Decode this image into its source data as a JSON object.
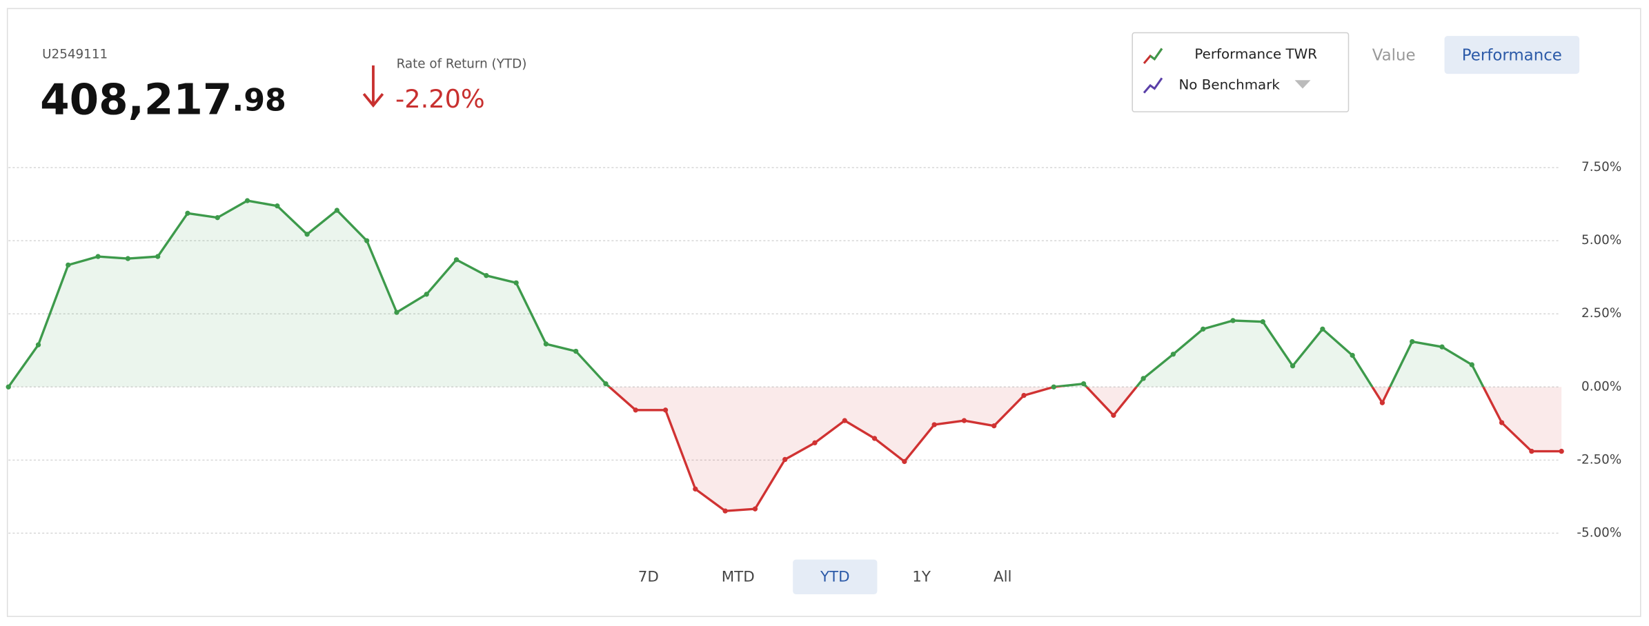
{
  "account": {
    "id": "U2549111",
    "value_main": "408,217",
    "value_cents": ".98"
  },
  "return": {
    "label": "Rate of Return (YTD)",
    "value": "-2.20%"
  },
  "legend": {
    "benchmark": "No Benchmark"
  },
  "view_buttons": [
    "Value",
    "Performance"
  ],
  "active_view_index": 1,
  "range_buttons": [
    "7D",
    "MTD",
    "YTD",
    "1Y",
    "All"
  ],
  "active_range_index": 2,
  "chart_data": {
    "type": "line",
    "categories": [
      null,
      null,
      null,
      null,
      null,
      null,
      null,
      null,
      null,
      null,
      null,
      null,
      null,
      null,
      null,
      null,
      null,
      null,
      null,
      null,
      null,
      null,
      null,
      null,
      null,
      null,
      null,
      null,
      null,
      null,
      null,
      null,
      null,
      null,
      null,
      null,
      null,
      null,
      null,
      null,
      null,
      null,
      null,
      null,
      null,
      null,
      null,
      null,
      null,
      null,
      null,
      null,
      null
    ],
    "series": [
      {
        "name": "Performance TWR",
        "color": "#3d9a4b",
        "negative_color": "#d03232",
        "values": [
          0,
          1.44,
          4.17,
          4.46,
          4.39,
          4.46,
          5.94,
          5.79,
          6.37,
          6.19,
          5.22,
          6.04,
          5.0,
          2.55,
          3.17,
          4.35,
          3.81,
          3.56,
          1.47,
          1.22,
          0.11,
          -0.79,
          -0.79,
          -3.49,
          -4.24,
          -4.17,
          -2.48,
          -1.91,
          -1.15,
          -1.76,
          -2.55,
          -1.29,
          -1.15,
          -1.33,
          -0.29,
          0,
          0.11,
          -0.97,
          0.29,
          1.12,
          1.98,
          2.27,
          2.23,
          0.72,
          1.98,
          1.08,
          -0.54,
          1.55,
          1.37,
          0.76,
          -1.22,
          -2.2,
          -2.2
        ]
      }
    ],
    "ylim": [
      -5,
      7.5
    ],
    "yticks": [
      {
        "value": -5,
        "label": "-5.00%"
      },
      {
        "value": -2.5,
        "label": "-2.50%"
      },
      {
        "value": 0,
        "label": "0.00%"
      },
      {
        "value": 2.5,
        "label": "2.50%"
      },
      {
        "value": 5,
        "label": "5.00%"
      },
      {
        "value": 7.5,
        "label": "7.50%"
      }
    ],
    "grid": true
  }
}
